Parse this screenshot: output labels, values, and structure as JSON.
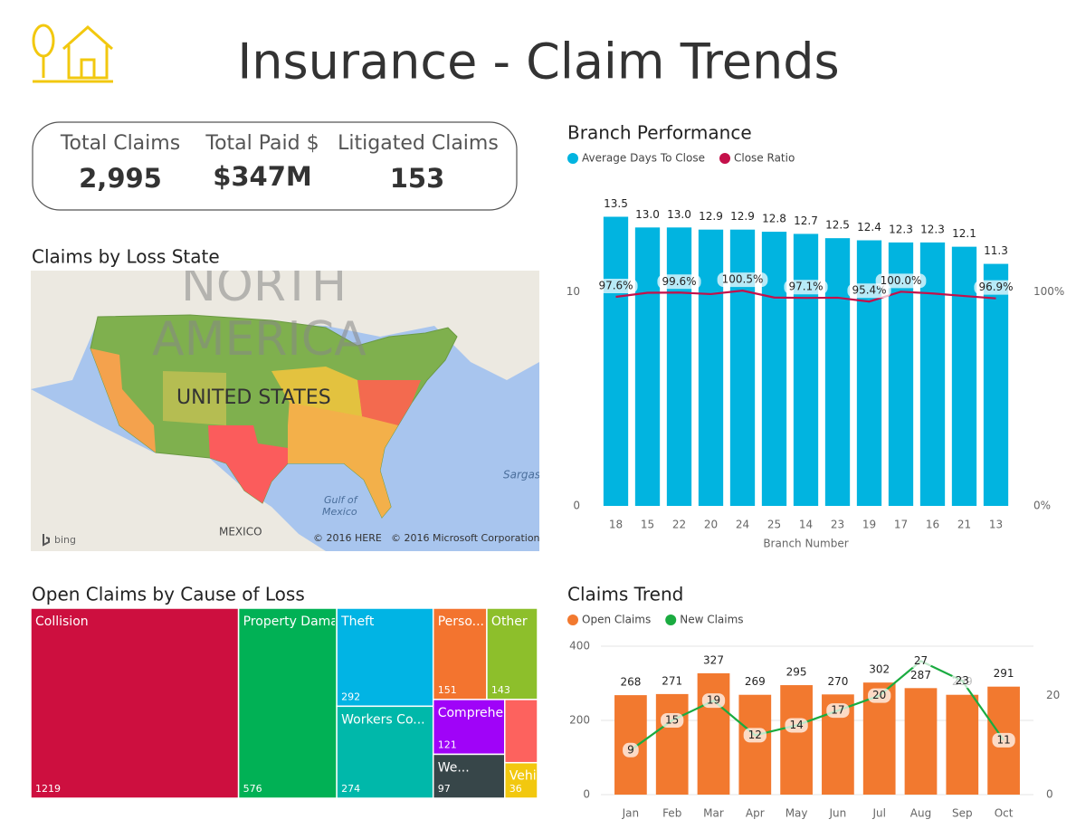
{
  "header": {
    "title": "Insurance - Claim Trends"
  },
  "kpis": [
    {
      "label": "Total Claims",
      "value": "2,995"
    },
    {
      "label": "Total Paid $",
      "value": "$347M"
    },
    {
      "label": "Litigated Claims",
      "value": "153"
    }
  ],
  "map": {
    "title": "Claims by Loss State",
    "labels": [
      "NORTH",
      "AMERICA",
      "UNITED STATES",
      "Gulf of",
      "Mexico",
      "MEXICO",
      "Sargas",
      "© 2016 HERE",
      "© 2016 Microsoft Corporation",
      "bing"
    ]
  },
  "chart_data": [
    {
      "type": "combo",
      "title": "Branch Performance",
      "x_label": "Branch Number",
      "categories": [
        "18",
        "15",
        "22",
        "20",
        "24",
        "25",
        "14",
        "23",
        "19",
        "17",
        "16",
        "21",
        "13"
      ],
      "series": [
        {
          "name": "Average Days To Close",
          "color": "#01b4e0",
          "values": [
            13.5,
            13.0,
            13.0,
            12.9,
            12.9,
            12.8,
            12.7,
            12.5,
            12.4,
            12.3,
            12.3,
            12.1,
            11.3
          ],
          "value_labels": [
            "13.5",
            "13.0",
            "13.0",
            "12.9",
            "12.9",
            "12.8",
            "12.7",
            "12.5",
            "12.4",
            "12.3",
            "12.3",
            "12.1",
            "11.3"
          ]
        },
        {
          "name": "Close Ratio",
          "color": "#c4104a",
          "axis": "y2",
          "values": [
            97.6,
            99.5,
            99.6,
            98.9,
            100.5,
            97.3,
            97.1,
            97.2,
            95.4,
            100.0,
            99.2,
            98.0,
            96.9
          ],
          "value_labels": [
            "97.6%",
            null,
            "99.6%",
            null,
            "100.5%",
            null,
            "97.1%",
            null,
            "95.4%",
            "100.0%",
            null,
            null,
            "96.9%"
          ]
        }
      ],
      "ylim": [
        0,
        15
      ],
      "yticks": [
        0,
        10
      ],
      "y2lim": [
        0,
        150
      ],
      "y2ticks": [
        {
          "value": 0,
          "label": "0%"
        },
        {
          "value": 100,
          "label": "100%"
        }
      ],
      "grid": false
    },
    {
      "type": "treemap",
      "title": "Open Claims by Cause of Loss",
      "categories": [
        "Collision",
        "Property Damage",
        "Theft",
        "Workers Co...",
        "Perso...",
        "Other",
        "Comprehe...",
        "We...",
        null,
        "Vehicle ..."
      ],
      "values": [
        1219,
        576,
        292,
        274,
        151,
        143,
        121,
        97,
        64,
        36
      ],
      "colors": [
        "#cd0f3f",
        "#01b155",
        "#01b4e4",
        "#00b8aa",
        "#f3742f",
        "#8dbf2b",
        "#a003f8",
        "#374649",
        "#fd625e",
        "#f2c80f"
      ]
    },
    {
      "type": "combo",
      "title": "Claims Trend",
      "categories": [
        "Jan",
        "Feb",
        "Mar",
        "Apr",
        "May",
        "Jun",
        "Jul",
        "Aug",
        "Sep",
        "Oct"
      ],
      "series": [
        {
          "name": "Open Claims",
          "color": "#f2792f",
          "values": [
            268,
            271,
            327,
            269,
            295,
            270,
            302,
            287,
            269,
            291
          ]
        },
        {
          "name": "New Claims",
          "color": "#1aab40",
          "axis": "y2",
          "values": [
            9,
            15,
            19,
            12,
            14,
            17,
            20,
            27,
            23,
            11
          ]
        }
      ],
      "ylim": [
        0,
        400
      ],
      "yticks": [
        0,
        200,
        400
      ],
      "y2lim": [
        0,
        30
      ],
      "y2ticks": [
        0,
        20
      ],
      "grid": true
    }
  ]
}
